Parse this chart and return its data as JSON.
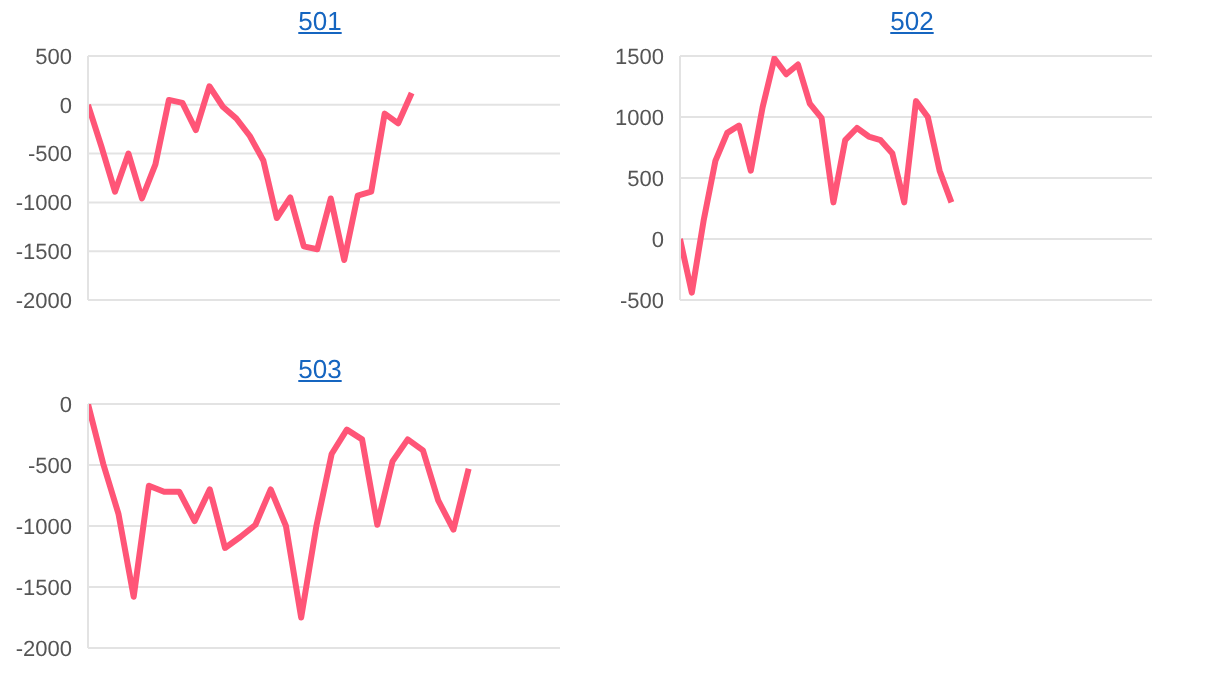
{
  "chart_data": [
    {
      "type": "line",
      "title": "501",
      "color": "#ff5577",
      "marker": "none",
      "grid": "y",
      "tick_labels": "y",
      "categories": [
        null,
        null,
        null,
        null,
        null,
        null,
        null,
        null,
        null,
        null,
        null,
        null,
        null,
        null,
        null,
        null,
        null,
        null,
        null,
        null,
        null,
        null,
        null,
        null,
        null,
        null,
        null,
        null,
        null,
        null,
        null,
        null,
        null,
        null,
        null,
        null
      ],
      "values": [
        0,
        -430,
        -890,
        -500,
        -960,
        -610,
        50,
        20,
        -260,
        190,
        -20,
        -140,
        -320,
        -570,
        -1160,
        -950,
        -1450,
        -1480,
        -960,
        -1590,
        -930,
        -890,
        -90,
        -190,
        120,
        null,
        null,
        null,
        null,
        null,
        null,
        null,
        null,
        null,
        null,
        null
      ],
      "ylim": [
        -2000,
        500
      ],
      "yticks": [
        -2000,
        -1500,
        -1000,
        -500,
        0,
        500
      ]
    },
    {
      "type": "line",
      "title": "502",
      "color": "#ff5577",
      "marker": "none",
      "grid": "y",
      "tick_labels": "y",
      "categories": [
        null,
        null,
        null,
        null,
        null,
        null,
        null,
        null,
        null,
        null,
        null,
        null,
        null,
        null,
        null,
        null,
        null,
        null,
        null,
        null,
        null,
        null,
        null,
        null,
        null,
        null,
        null,
        null,
        null,
        null,
        null,
        null,
        null,
        null,
        null,
        null,
        null,
        null,
        null,
        null,
        null
      ],
      "values": [
        0,
        -440,
        150,
        640,
        870,
        930,
        560,
        1080,
        1480,
        1350,
        1430,
        1110,
        990,
        300,
        810,
        910,
        840,
        810,
        700,
        300,
        1130,
        1000,
        560,
        300,
        null,
        null,
        null,
        null,
        null,
        null,
        null,
        null,
        null,
        null,
        null,
        null,
        null,
        null,
        null,
        null,
        null
      ],
      "ylim": [
        -500,
        1500
      ],
      "yticks": [
        -500,
        0,
        500,
        1000,
        1500
      ]
    },
    {
      "type": "line",
      "title": "503",
      "color": "#ff5577",
      "marker": "none",
      "grid": "y",
      "tick_labels": "y",
      "categories": [
        null,
        null,
        null,
        null,
        null,
        null,
        null,
        null,
        null,
        null,
        null,
        null,
        null,
        null,
        null,
        null,
        null,
        null,
        null,
        null,
        null,
        null,
        null,
        null,
        null,
        null,
        null,
        null,
        null,
        null,
        null,
        null
      ],
      "values": [
        0,
        -490,
        -900,
        -1580,
        -670,
        -720,
        -720,
        -960,
        -700,
        -1180,
        -1090,
        -990,
        -700,
        -1000,
        -1750,
        -1000,
        -410,
        -210,
        -290,
        -990,
        -470,
        -290,
        -380,
        -790,
        -1030,
        -530,
        null,
        null,
        null,
        null,
        null,
        null
      ],
      "ylim": [
        -2000,
        0
      ],
      "yticks": [
        -2000,
        -1500,
        -1000,
        -500,
        0
      ]
    }
  ]
}
